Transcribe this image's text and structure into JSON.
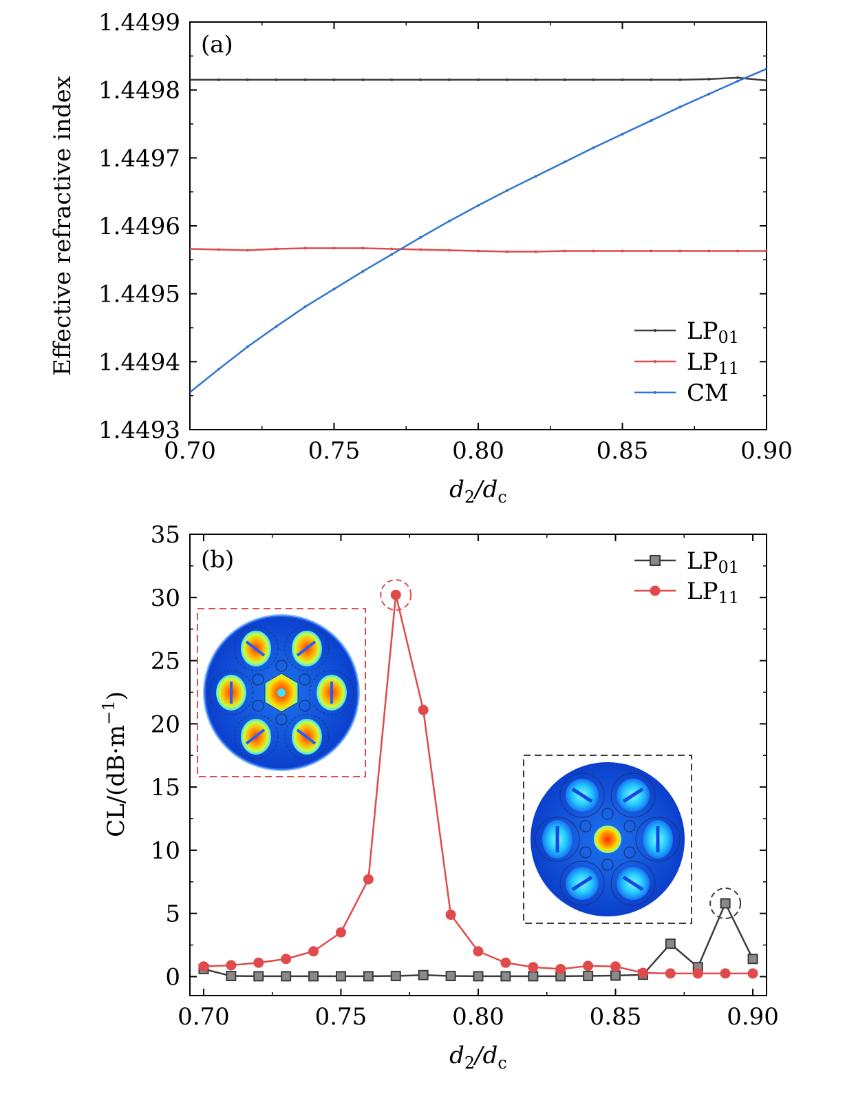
{
  "chart_data": [
    {
      "type": "line",
      "panel_label": "(a)",
      "xlabel": "d2/dc",
      "ylabel": "Effective refractive index",
      "xlim": [
        0.7,
        0.9
      ],
      "ylim": [
        1.4493,
        1.4499
      ],
      "x_ticks": [
        "0.70",
        "0.75",
        "0.80",
        "0.85",
        "0.90"
      ],
      "y_ticks": [
        "1.4493",
        "1.4494",
        "1.4495",
        "1.4496",
        "1.4497",
        "1.4498",
        "1.4499"
      ],
      "legend_position": "bottom-right",
      "x": [
        0.7,
        0.71,
        0.72,
        0.73,
        0.74,
        0.75,
        0.76,
        0.77,
        0.78,
        0.79,
        0.8,
        0.81,
        0.82,
        0.83,
        0.84,
        0.85,
        0.86,
        0.87,
        0.88,
        0.89,
        0.9
      ],
      "series": [
        {
          "name": "LP01",
          "label_main": "LP",
          "label_sub": "01",
          "color": "#3b3b3b",
          "values": [
            1.449815,
            1.449815,
            1.449815,
            1.449815,
            1.449815,
            1.449815,
            1.449815,
            1.449815,
            1.449815,
            1.449815,
            1.449815,
            1.449815,
            1.449815,
            1.449815,
            1.449815,
            1.449815,
            1.449815,
            1.449815,
            1.449816,
            1.449818,
            1.449814
          ]
        },
        {
          "name": "LP11",
          "label_main": "LP",
          "label_sub": "11",
          "color": "#e04a4a",
          "values": [
            1.449566,
            1.449565,
            1.449564,
            1.449566,
            1.449567,
            1.449567,
            1.449567,
            1.449566,
            1.449565,
            1.449564,
            1.449563,
            1.449562,
            1.449562,
            1.449563,
            1.449563,
            1.449563,
            1.449563,
            1.449563,
            1.449563,
            1.449563,
            1.449563
          ]
        },
        {
          "name": "CM",
          "label_main": "CM",
          "label_sub": "",
          "color": "#2f74d0",
          "values": [
            1.449355,
            1.449389,
            1.449422,
            1.449452,
            1.449481,
            1.449507,
            1.449533,
            1.449558,
            1.449583,
            1.449607,
            1.44963,
            1.449652,
            1.449673,
            1.449694,
            1.449715,
            1.449735,
            1.449755,
            1.449775,
            1.449794,
            1.449813,
            1.449831
          ]
        }
      ]
    },
    {
      "type": "line",
      "panel_label": "(b)",
      "xlabel": "d2/dc",
      "ylabel": "CL/(dB·m−1)",
      "xlim": [
        0.695,
        0.905
      ],
      "ylim": [
        -1.5,
        35
      ],
      "x_ticks": [
        "0.70",
        "0.75",
        "0.80",
        "0.85",
        "0.90"
      ],
      "y_ticks": [
        "0",
        "5",
        "10",
        "15",
        "20",
        "25",
        "30",
        "35"
      ],
      "legend_position": "top-right",
      "x": [
        0.7,
        0.71,
        0.72,
        0.73,
        0.74,
        0.75,
        0.76,
        0.77,
        0.78,
        0.79,
        0.8,
        0.81,
        0.82,
        0.83,
        0.84,
        0.85,
        0.86,
        0.87,
        0.88,
        0.89,
        0.9
      ],
      "series": [
        {
          "name": "LP01",
          "label_main": "LP",
          "label_sub": "01",
          "color": "#3b3b3b",
          "marker": "square",
          "values": [
            0.6,
            0.05,
            0.03,
            0.03,
            0.03,
            0.03,
            0.03,
            0.05,
            0.12,
            0.05,
            0.03,
            0.03,
            0.03,
            0.03,
            0.05,
            0.08,
            0.15,
            2.6,
            0.75,
            5.8,
            1.4
          ]
        },
        {
          "name": "LP11",
          "label_main": "LP",
          "label_sub": "11",
          "color": "#e04a4a",
          "marker": "circle",
          "values": [
            0.8,
            0.9,
            1.1,
            1.4,
            2.0,
            3.5,
            7.7,
            30.2,
            21.1,
            4.9,
            2.0,
            1.1,
            0.75,
            0.6,
            0.85,
            0.8,
            0.3,
            0.25,
            0.25,
            0.25,
            0.25
          ]
        }
      ],
      "highlights": [
        {
          "series": "LP11",
          "x": 0.77,
          "color": "#e04a4a"
        },
        {
          "series": "LP01",
          "x": 0.89,
          "color": "#3b3b3b"
        }
      ],
      "insets": [
        {
          "mode": "LP11",
          "border_color": "#e04a4a"
        },
        {
          "mode": "LP01",
          "border_color": "#3b3b3b"
        }
      ]
    }
  ]
}
